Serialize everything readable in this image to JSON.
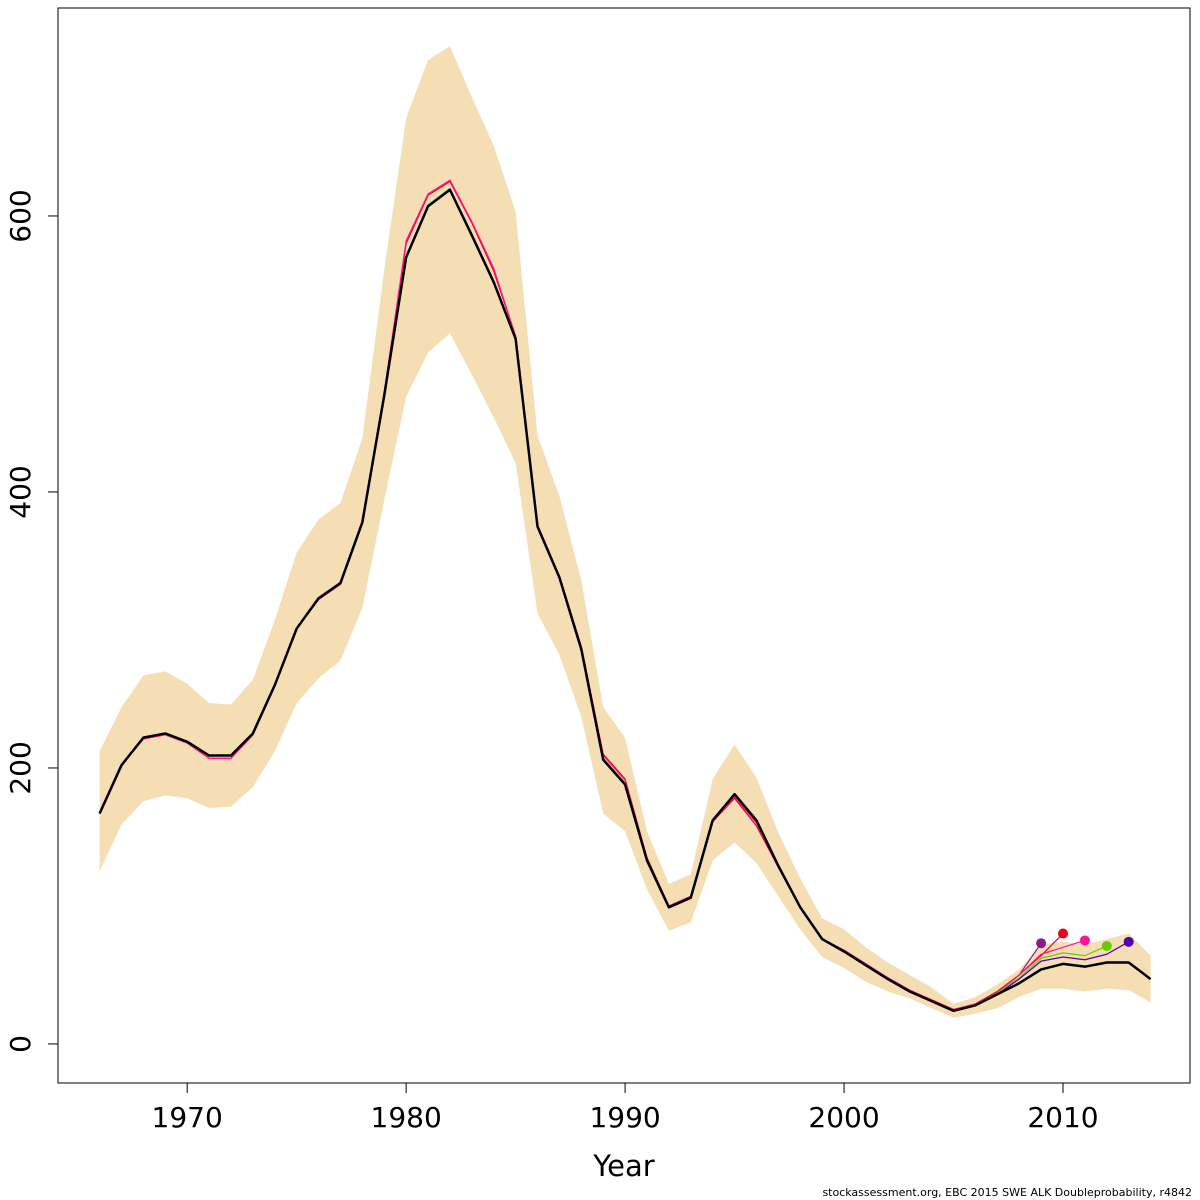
{
  "chart_data": {
    "type": "line",
    "xlabel": "Year",
    "footnote": "stockassessment.org, EBC 2015 SWE ALK Doubleprobability, r4842",
    "x": [
      1966,
      1967,
      1968,
      1969,
      1970,
      1971,
      1972,
      1973,
      1974,
      1975,
      1976,
      1977,
      1978,
      1979,
      1980,
      1981,
      1982,
      1983,
      1984,
      1985,
      1986,
      1987,
      1988,
      1989,
      1990,
      1991,
      1992,
      1993,
      1994,
      1995,
      1996,
      1997,
      1998,
      1999,
      2000,
      2001,
      2002,
      2003,
      2004,
      2005,
      2006,
      2007,
      2008,
      2009,
      2010,
      2011,
      2012,
      2013,
      2014
    ],
    "band": {
      "color": "#f5deb3",
      "upper": [
        212,
        244,
        267,
        270,
        261,
        247,
        246,
        264,
        307,
        356,
        380,
        392,
        439,
        561,
        671,
        713,
        723,
        686,
        651,
        603,
        441,
        397,
        336,
        244,
        222,
        154,
        116,
        123,
        192,
        217,
        193,
        153,
        120,
        91,
        83,
        70,
        59,
        50,
        41,
        29,
        34,
        43,
        54,
        72,
        74,
        72,
        76,
        80,
        64
      ],
      "lower": [
        125,
        159,
        176,
        180,
        178,
        171,
        172,
        186,
        212,
        247,
        265,
        278,
        316,
        394,
        469,
        501,
        515,
        485,
        454,
        421,
        312,
        282,
        237,
        167,
        154,
        112,
        82,
        88,
        133,
        146,
        131,
        107,
        83,
        63,
        55,
        45,
        38,
        33,
        26,
        19,
        22,
        26,
        34,
        40,
        40,
        38,
        40,
        39,
        30
      ]
    },
    "series": [
      {
        "color": "#8b1a8b",
        "values": [
          167,
          202,
          222,
          225,
          219,
          209,
          209,
          225,
          260,
          301,
          323,
          334,
          378,
          470,
          570,
          607,
          619,
          586,
          552,
          511,
          375,
          338,
          286,
          206,
          188,
          133,
          99,
          106,
          162,
          181,
          162,
          129,
          99,
          76,
          67,
          57,
          47,
          38,
          31,
          24,
          29,
          38,
          50,
          73,
          null,
          null,
          null,
          null,
          null
        ]
      },
      {
        "color": "#e8001c",
        "values": [
          167,
          202,
          221,
          224,
          218,
          207,
          207,
          224,
          260,
          301,
          322,
          333,
          378,
          472,
          580,
          615,
          625,
          595,
          560,
          513,
          376,
          339,
          288,
          210,
          192,
          135,
          100,
          107,
          161,
          178,
          158,
          128,
          99,
          76,
          68,
          58,
          48,
          39,
          32,
          25,
          29,
          38,
          50,
          64,
          80,
          null,
          null,
          null,
          null
        ]
      },
      {
        "color": "#ff1493",
        "values": [
          167,
          202,
          221,
          224,
          218,
          207,
          207,
          224,
          260,
          301,
          322,
          333,
          378,
          472,
          582,
          616,
          626,
          596,
          562,
          513,
          376,
          339,
          288,
          209,
          191,
          134,
          100,
          107,
          161,
          179,
          160,
          128,
          99,
          76,
          68,
          58,
          48,
          39,
          32,
          25,
          29,
          37,
          50,
          65,
          70,
          75,
          null,
          null,
          null
        ]
      },
      {
        "color": "#66cc00",
        "values": [
          167,
          202,
          222,
          225,
          219,
          209,
          209,
          225,
          260,
          301,
          323,
          334,
          378,
          470,
          571,
          608,
          620,
          587,
          553,
          511,
          375,
          338,
          286,
          207,
          189,
          133,
          99,
          106,
          162,
          181,
          162,
          129,
          99,
          76,
          67,
          57,
          47,
          38,
          31,
          24,
          28,
          37,
          48,
          62,
          66,
          64,
          71,
          null,
          null
        ]
      },
      {
        "color": "#5500aa",
        "values": [
          167,
          202,
          222,
          225,
          219,
          209,
          209,
          225,
          260,
          301,
          323,
          334,
          378,
          470,
          570,
          607,
          619,
          586,
          552,
          511,
          375,
          338,
          286,
          206,
          188,
          133,
          99,
          106,
          162,
          181,
          162,
          129,
          99,
          76,
          67,
          57,
          47,
          38,
          31,
          24,
          28,
          36,
          47,
          60,
          63,
          61,
          65,
          74,
          null
        ]
      },
      {
        "color": "#000000",
        "values": [
          167,
          202,
          222,
          225,
          219,
          209,
          209,
          225,
          260,
          301,
          323,
          334,
          378,
          470,
          570,
          607,
          619,
          586,
          552,
          511,
          375,
          338,
          286,
          206,
          188,
          133,
          99,
          106,
          162,
          181,
          162,
          129,
          99,
          76,
          67,
          57,
          47,
          38,
          31,
          24,
          28,
          36,
          44,
          54,
          58,
          56,
          59,
          59,
          47
        ]
      }
    ],
    "xlim": [
      1964.1,
      2015.8
    ],
    "xticks": [
      1970,
      1980,
      1990,
      2000,
      2010
    ],
    "ylim": [
      -28.3,
      750.7
    ],
    "yticks": [
      0,
      200,
      400,
      600
    ]
  }
}
